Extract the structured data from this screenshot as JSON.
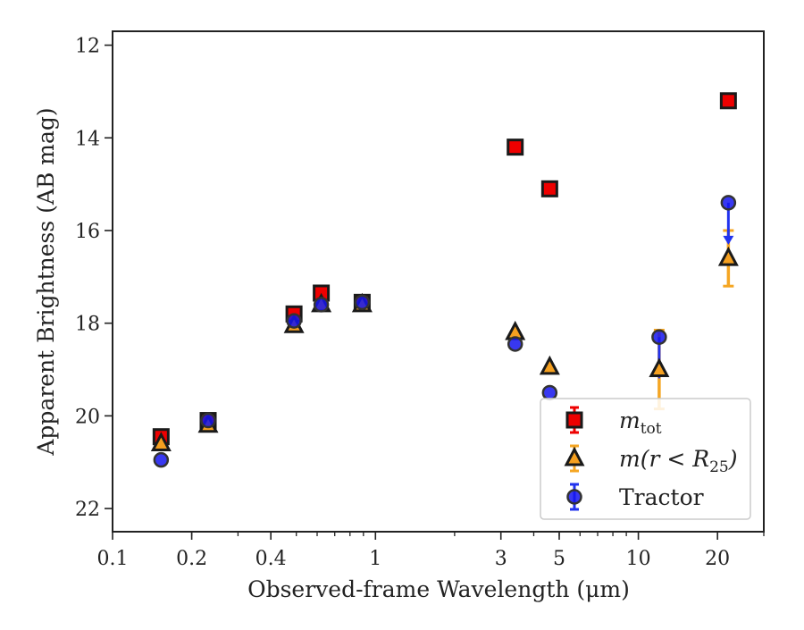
{
  "chart_data": {
    "type": "scatter",
    "xlabel": "Observed-frame Wavelength (μm)",
    "ylabel": "Apparent Brightness (AB mag)",
    "xscale": "log",
    "xlim": [
      0.1,
      30
    ],
    "ylim": [
      22.5,
      11.7
    ],
    "y_inverted": true,
    "grid": false,
    "legend_position": "lower-right",
    "x_ticks": [
      {
        "value": 0.1,
        "label": "0.1"
      },
      {
        "value": 0.2,
        "label": "0.2"
      },
      {
        "value": 0.4,
        "label": "0.4"
      },
      {
        "value": 1,
        "label": "1"
      },
      {
        "value": 3,
        "label": "3"
      },
      {
        "value": 5,
        "label": "5"
      },
      {
        "value": 10,
        "label": "10"
      },
      {
        "value": 20,
        "label": "20"
      }
    ],
    "y_ticks": [
      {
        "value": 12,
        "label": "12"
      },
      {
        "value": 14,
        "label": "14"
      },
      {
        "value": 16,
        "label": "16"
      },
      {
        "value": 18,
        "label": "18"
      },
      {
        "value": 20,
        "label": "20"
      },
      {
        "value": 22,
        "label": "22"
      }
    ],
    "series": [
      {
        "name": "m_tot",
        "legend_main": "m",
        "legend_sub": "tot",
        "marker": "square",
        "color": "#ee0000",
        "errcolor": "#ee0000",
        "x": [
          0.153,
          0.231,
          0.49,
          0.622,
          0.89,
          3.4,
          4.6,
          22
        ],
        "y": [
          20.45,
          20.1,
          17.8,
          17.35,
          17.55,
          14.2,
          15.1,
          13.2
        ]
      },
      {
        "name": "m(r < R25)",
        "legend_main": "m(r < R",
        "legend_sub": "25",
        "legend_tail": ")",
        "marker": "triangle",
        "color": "#f5a020",
        "errcolor": "#f5a623",
        "x": [
          0.153,
          0.231,
          0.49,
          0.622,
          0.89,
          3.4,
          4.6,
          12,
          22
        ],
        "y": [
          20.6,
          20.2,
          18.05,
          17.6,
          17.6,
          18.2,
          18.95,
          19.0,
          16.6
        ],
        "err": [
          0,
          0,
          0,
          0,
          0,
          0,
          0,
          0.85,
          0.6
        ]
      },
      {
        "name": "Tractor",
        "legend_main": "Tractor",
        "marker": "circle",
        "color": "#1515ee",
        "errcolor": "#2233ee",
        "x": [
          0.153,
          0.231,
          0.49,
          0.622,
          0.89,
          3.4,
          4.6,
          12,
          22
        ],
        "y": [
          20.95,
          20.1,
          17.95,
          17.6,
          17.55,
          18.45,
          19.5,
          18.3,
          15.4
        ],
        "upper_limit": [
          false,
          false,
          false,
          false,
          false,
          false,
          false,
          true,
          true
        ]
      }
    ]
  }
}
